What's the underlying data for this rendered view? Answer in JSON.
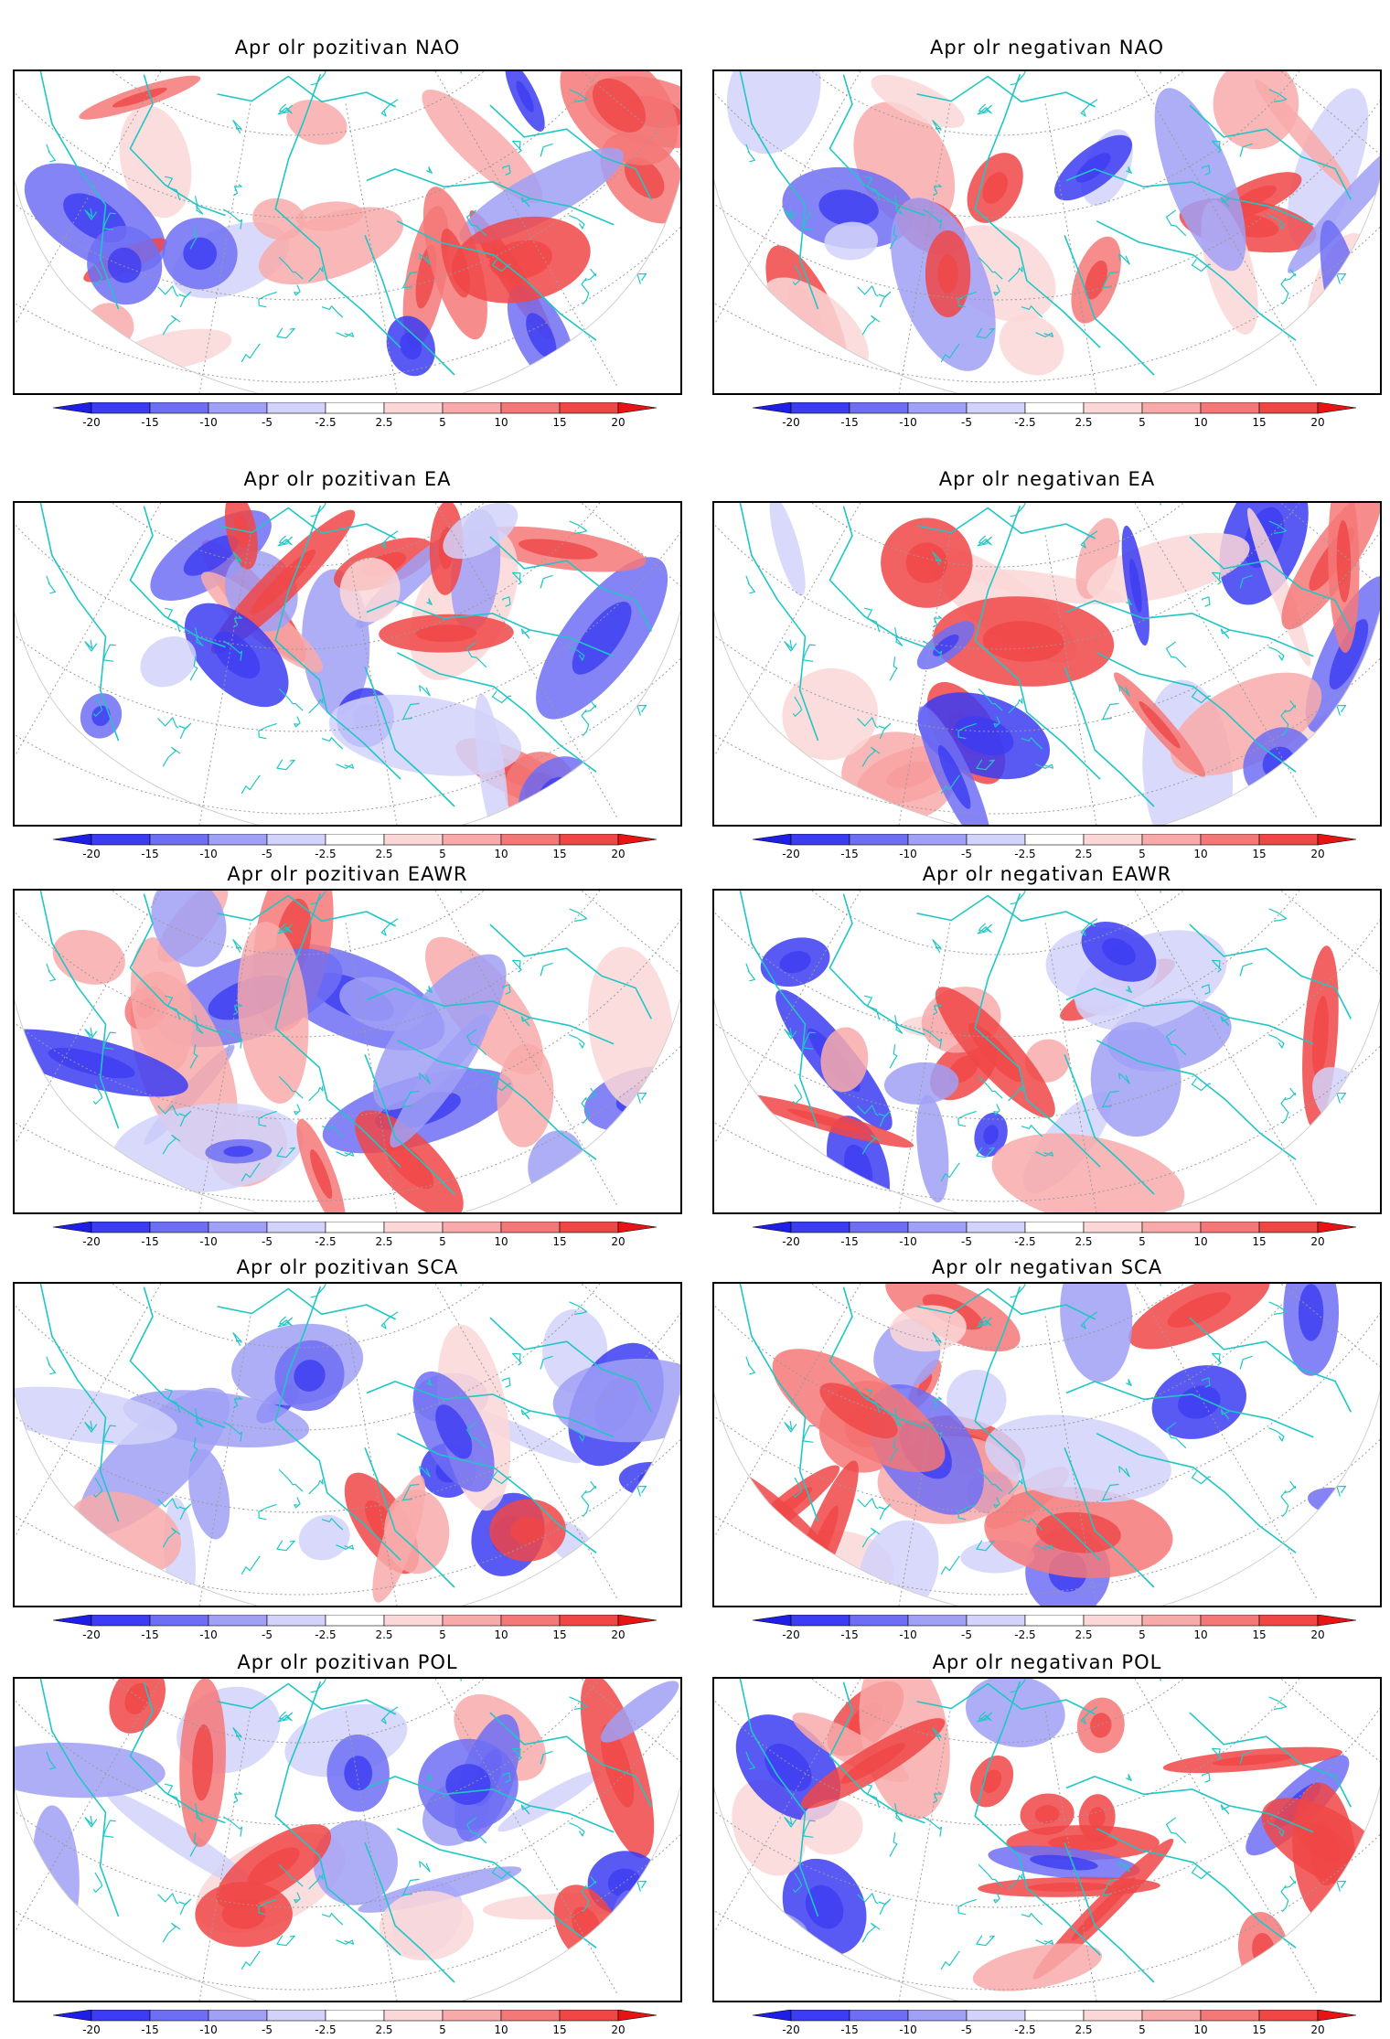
{
  "colorbar": {
    "labels": [
      "-20",
      "-15",
      "-10",
      "-5",
      "-2.5",
      "2.5",
      "5",
      "10",
      "15",
      "20"
    ],
    "colors": [
      "#1e1ee6",
      "#3c3cf2",
      "#6e6ef5",
      "#a0a0f6",
      "#d2d2fa",
      "#ffffff",
      "#fcd7d7",
      "#f8aaaa",
      "#f47878",
      "#f04646",
      "#e81414"
    ]
  },
  "coastline_color": "#20c6c6",
  "graticule_color": "#9a9a9a",
  "panels": [
    {
      "id": "pos-nao",
      "title": "Apr olr pozitivan NAO"
    },
    {
      "id": "neg-nao",
      "title": "Apr olr negativan NAO"
    },
    {
      "id": "pos-ea",
      "title": "Apr olr pozitivan EA"
    },
    {
      "id": "neg-ea",
      "title": "Apr olr negativan EA"
    },
    {
      "id": "pos-eawr",
      "title": "Apr olr pozitivan EAWR"
    },
    {
      "id": "neg-eawr",
      "title": "Apr olr negativan EAWR"
    },
    {
      "id": "pos-sca",
      "title": "Apr olr pozitivan SCA"
    },
    {
      "id": "neg-sca",
      "title": "Apr olr negativan SCA"
    },
    {
      "id": "pos-pol",
      "title": "Apr olr pozitivan POL"
    },
    {
      "id": "neg-pol",
      "title": "Apr olr negativan POL"
    }
  ]
}
